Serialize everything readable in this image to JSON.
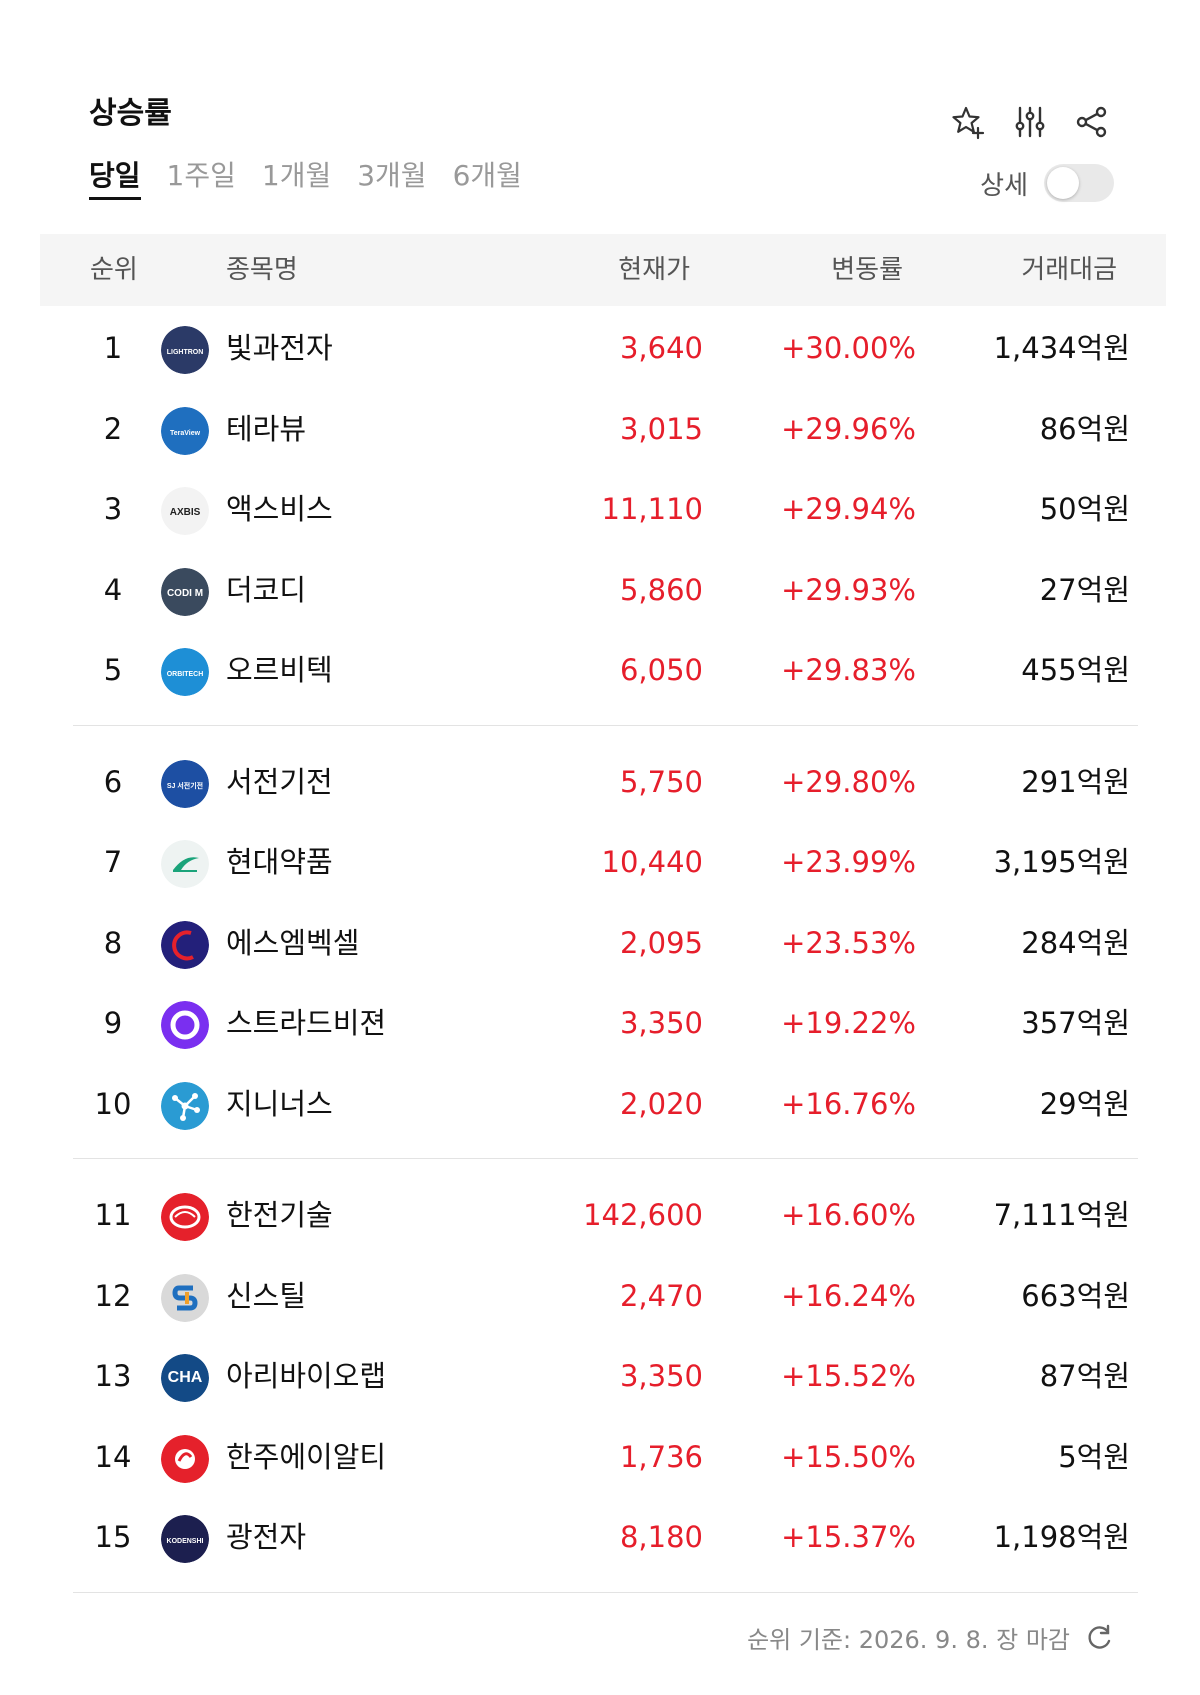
{
  "header": {
    "title": "상승률",
    "tabs": [
      {
        "label": "당일",
        "active": true
      },
      {
        "label": "1주일",
        "active": false
      },
      {
        "label": "1개월",
        "active": false
      },
      {
        "label": "3개월",
        "active": false
      },
      {
        "label": "6개월",
        "active": false
      }
    ],
    "icons": [
      "star-plus-icon",
      "sliders-icon",
      "share-icon"
    ],
    "detail_label": "상세",
    "detail_toggle_on": false
  },
  "table": {
    "headers": {
      "rank": "순위",
      "name": "종목명",
      "price": "현재가",
      "rate": "변동률",
      "volume": "거래대금"
    },
    "rows": [
      {
        "rank": "1",
        "name": "빛과전자",
        "price": "3,640",
        "rate": "+30.00%",
        "volume": "1,434억원",
        "logo_text": "LIGHTRON",
        "logo_color": "#2b3a67"
      },
      {
        "rank": "2",
        "name": "테라뷰",
        "price": "3,015",
        "rate": "+29.96%",
        "volume": "86억원",
        "logo_text": "TeraView",
        "logo_color": "#1f6fbf"
      },
      {
        "rank": "3",
        "name": "액스비스",
        "price": "11,110",
        "rate": "+29.94%",
        "volume": "50억원",
        "logo_text": "AXBIS",
        "logo_color": "#f3f3f3"
      },
      {
        "rank": "4",
        "name": "더코디",
        "price": "5,860",
        "rate": "+29.93%",
        "volume": "27억원",
        "logo_text": "CODI M",
        "logo_color": "#3a4a5e"
      },
      {
        "rank": "5",
        "name": "오르비텍",
        "price": "6,050",
        "rate": "+29.83%",
        "volume": "455억원",
        "logo_text": "ORBITECH",
        "logo_color": "#1e8fd6"
      },
      {
        "rank": "6",
        "name": "서전기전",
        "price": "5,750",
        "rate": "+29.80%",
        "volume": "291억원",
        "logo_text": "SJ 서전기전",
        "logo_color": "#1d4fa3"
      },
      {
        "rank": "7",
        "name": "현대약품",
        "price": "10,440",
        "rate": "+23.99%",
        "volume": "3,195억원",
        "logo_text": "",
        "logo_color": "#eef3f2"
      },
      {
        "rank": "8",
        "name": "에스엠벡셀",
        "price": "2,095",
        "rate": "+23.53%",
        "volume": "284억원",
        "logo_text": "",
        "logo_color": "#23207a"
      },
      {
        "rank": "9",
        "name": "스트라드비젼",
        "price": "3,350",
        "rate": "+19.22%",
        "volume": "357억원",
        "logo_text": "",
        "logo_color": "#7a2ff0"
      },
      {
        "rank": "10",
        "name": "지니너스",
        "price": "2,020",
        "rate": "+16.76%",
        "volume": "29억원",
        "logo_text": "",
        "logo_color": "#2a9bd3"
      },
      {
        "rank": "11",
        "name": "한전기술",
        "price": "142,600",
        "rate": "+16.60%",
        "volume": "7,111억원",
        "logo_text": "",
        "logo_color": "#e5212b"
      },
      {
        "rank": "12",
        "name": "신스틸",
        "price": "2,470",
        "rate": "+16.24%",
        "volume": "663억원",
        "logo_text": "",
        "logo_color": "#d9d9d9"
      },
      {
        "rank": "13",
        "name": "아리바이오랩",
        "price": "3,350",
        "rate": "+15.52%",
        "volume": "87억원",
        "logo_text": "CHA",
        "logo_color": "#134a86"
      },
      {
        "rank": "14",
        "name": "한주에이알티",
        "price": "1,736",
        "rate": "+15.50%",
        "volume": "5억원",
        "logo_text": "",
        "logo_color": "#e5212b"
      },
      {
        "rank": "15",
        "name": "광전자",
        "price": "8,180",
        "rate": "+15.37%",
        "volume": "1,198억원",
        "logo_text": "KODENSHI",
        "logo_color": "#1c1f4f"
      }
    ]
  },
  "footer": {
    "basis_text": "순위 기준: 2026. 9. 8. 장 마감",
    "refresh_icon": "refresh-icon"
  },
  "colors": {
    "rise": "#e61e2b",
    "text": "#111111",
    "muted": "#999999",
    "header_bg": "#f5f5f5"
  }
}
